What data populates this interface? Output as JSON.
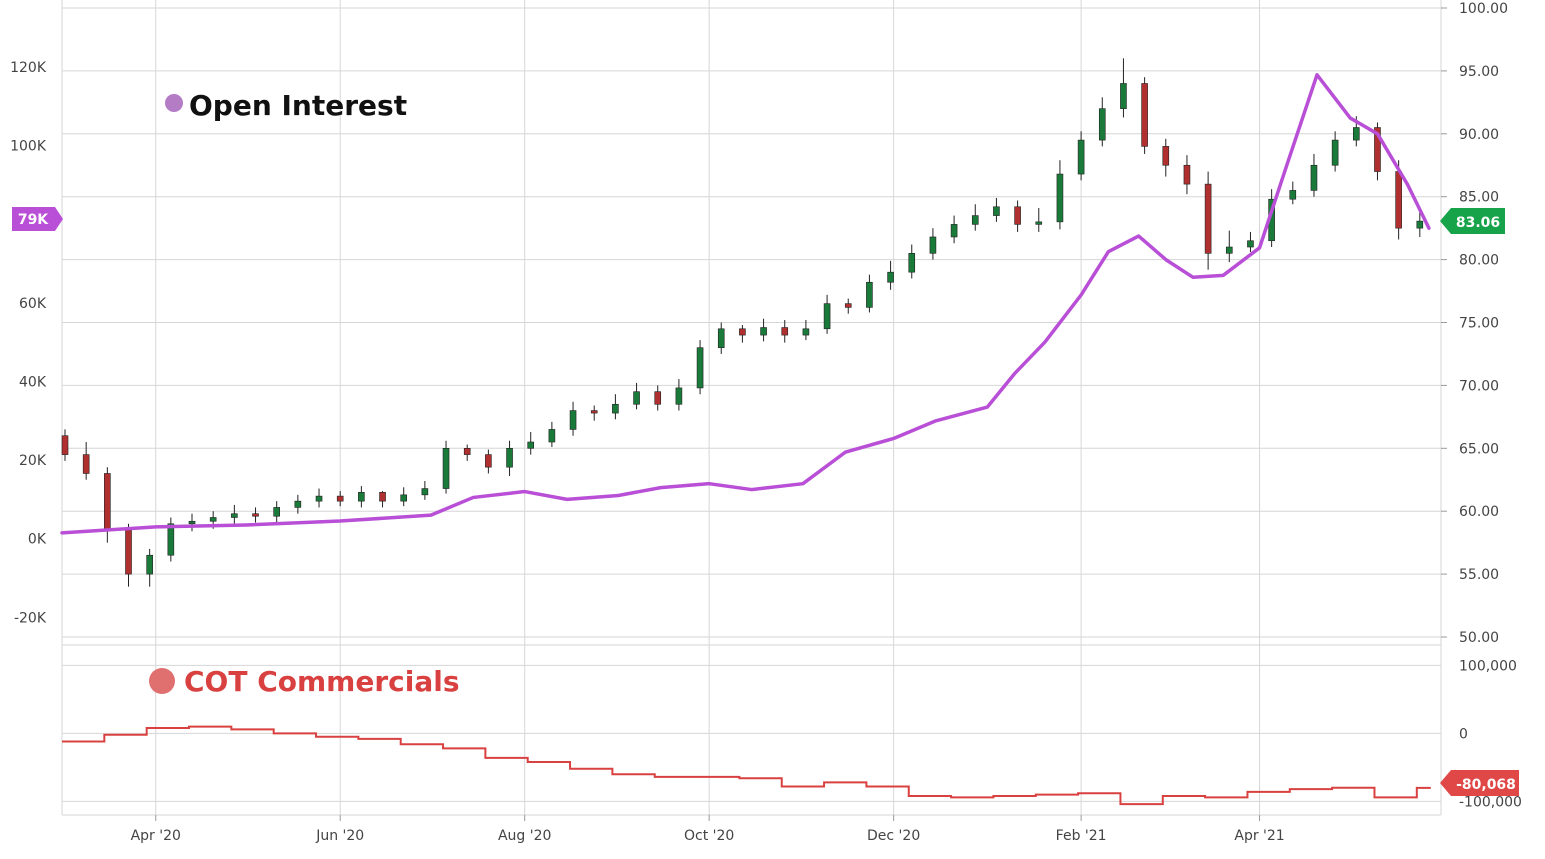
{
  "colors": {
    "background": "#ffffff",
    "grid": "#d6d6d6",
    "axis_text": "#444444",
    "open_interest_line": "#b84fd6",
    "open_interest_legend_dot": "#b57cc6",
    "cot_line": "#d94040",
    "cot_legend_dot": "#e07070",
    "candle_up": "#1a7a3a",
    "candle_down": "#b03030",
    "wick": "#222222",
    "price_badge": "#16a34a",
    "oi_badge": "#b84fd6",
    "cot_badge": "#e04848"
  },
  "chart_data": [
    {
      "type": "candlestick",
      "panel": "main",
      "legend": [
        "Open Interest"
      ],
      "x_tick_labels": [
        "Apr '20",
        "Jun '20",
        "Aug '20",
        "Oct '20",
        "Dec '20",
        "Feb '21",
        "Apr '21"
      ],
      "x_ticks": [
        "2020-04-01",
        "2020-06-01",
        "2020-08-01",
        "2020-10-01",
        "2020-12-01",
        "2021-02-01",
        "2021-04-01"
      ],
      "xlim": [
        "2020-03-01",
        "2021-05-31"
      ],
      "left_axis": {
        "tick_labels": [
          "120K",
          "100K",
          "60K",
          "40K",
          "20K",
          "0K",
          "-20K"
        ],
        "ticks": [
          120000,
          100000,
          60000,
          40000,
          20000,
          0,
          -20000
        ],
        "ylim": [
          -25000,
          135000
        ]
      },
      "right_axis": {
        "tick_labels": [
          "100.00",
          "95.00",
          "90.00",
          "85.00",
          "80.00",
          "75.00",
          "70.00",
          "65.00",
          "60.00",
          "55.00",
          "50.00"
        ],
        "ticks": [
          100,
          95,
          90,
          85,
          80,
          75,
          70,
          65,
          60,
          55,
          50
        ],
        "ylim": [
          50,
          100
        ]
      },
      "grid": true,
      "price_series": {
        "x": [
          "2020-03-01",
          "2020-03-08",
          "2020-03-15",
          "2020-03-22",
          "2020-03-29",
          "2020-04-05",
          "2020-04-12",
          "2020-04-19",
          "2020-04-26",
          "2020-05-03",
          "2020-05-10",
          "2020-05-17",
          "2020-05-24",
          "2020-05-31",
          "2020-06-07",
          "2020-06-14",
          "2020-06-21",
          "2020-06-28",
          "2020-07-05",
          "2020-07-12",
          "2020-07-19",
          "2020-07-26",
          "2020-08-02",
          "2020-08-09",
          "2020-08-16",
          "2020-08-23",
          "2020-08-30",
          "2020-09-06",
          "2020-09-13",
          "2020-09-20",
          "2020-09-27",
          "2020-10-04",
          "2020-10-11",
          "2020-10-18",
          "2020-10-25",
          "2020-11-01",
          "2020-11-08",
          "2020-11-15",
          "2020-11-22",
          "2020-11-29",
          "2020-12-06",
          "2020-12-13",
          "2020-12-20",
          "2020-12-27",
          "2021-01-03",
          "2021-01-10",
          "2021-01-17",
          "2021-01-24",
          "2021-01-31",
          "2021-02-07",
          "2021-02-14",
          "2021-02-21",
          "2021-02-28",
          "2021-03-07",
          "2021-03-14",
          "2021-03-21",
          "2021-03-28",
          "2021-04-04",
          "2021-04-11",
          "2021-04-18",
          "2021-04-25",
          "2021-05-02",
          "2021-05-09",
          "2021-05-16",
          "2021-05-23"
        ],
        "open": [
          66.0,
          64.5,
          63.0,
          58.5,
          55.0,
          56.5,
          59.0,
          59.2,
          59.5,
          59.8,
          59.6,
          60.3,
          60.8,
          61.2,
          60.8,
          61.5,
          60.8,
          61.3,
          61.8,
          65.0,
          64.5,
          63.5,
          65.0,
          65.5,
          66.5,
          68.0,
          67.8,
          68.5,
          69.5,
          68.5,
          69.8,
          73.0,
          74.5,
          74.0,
          74.6,
          74.0,
          74.5,
          76.5,
          76.2,
          78.2,
          79.0,
          80.5,
          81.8,
          82.8,
          83.5,
          84.2,
          82.8,
          83.0,
          86.8,
          89.5,
          92.0,
          94.0,
          89.0,
          87.5,
          86.0,
          80.5,
          81.0,
          81.5,
          84.8,
          85.5,
          87.5,
          89.5,
          90.5,
          87.0,
          82.5
        ],
        "close": [
          64.5,
          63.0,
          58.5,
          55.0,
          56.5,
          59.0,
          59.2,
          59.5,
          59.8,
          59.6,
          60.3,
          60.8,
          61.2,
          60.8,
          61.5,
          60.8,
          61.3,
          61.8,
          65.0,
          64.5,
          63.5,
          65.0,
          65.5,
          66.5,
          68.0,
          67.8,
          68.5,
          69.5,
          68.5,
          69.8,
          73.0,
          74.5,
          74.0,
          74.6,
          74.0,
          74.5,
          76.5,
          76.2,
          78.2,
          79.0,
          80.5,
          81.8,
          82.8,
          83.5,
          84.2,
          82.8,
          83.0,
          86.8,
          89.5,
          92.0,
          94.0,
          89.0,
          87.5,
          86.0,
          80.5,
          81.0,
          81.5,
          84.8,
          85.5,
          87.5,
          89.5,
          90.5,
          87.0,
          82.5,
          83.06
        ],
        "high": [
          66.5,
          65.5,
          63.5,
          59.0,
          57.0,
          59.5,
          59.8,
          60.0,
          60.5,
          60.3,
          60.8,
          61.3,
          61.8,
          61.6,
          62.0,
          61.6,
          61.9,
          62.4,
          65.6,
          65.3,
          64.9,
          65.6,
          66.3,
          67.1,
          68.7,
          68.4,
          69.3,
          70.2,
          70.0,
          70.5,
          73.6,
          75.0,
          74.8,
          75.3,
          75.2,
          75.2,
          77.2,
          76.9,
          78.8,
          79.9,
          81.2,
          82.5,
          83.5,
          84.4,
          84.9,
          84.7,
          84.1,
          87.9,
          90.2,
          92.9,
          96.0,
          94.5,
          89.6,
          88.3,
          87.0,
          82.3,
          82.2,
          85.6,
          86.2,
          88.4,
          90.2,
          91.4,
          90.9,
          87.9,
          83.8
        ],
        "low": [
          64.0,
          62.5,
          57.5,
          54.0,
          54.0,
          56.0,
          58.4,
          58.6,
          59.0,
          59.1,
          59.1,
          59.8,
          60.3,
          60.4,
          60.3,
          60.3,
          60.4,
          60.9,
          61.4,
          64.0,
          63.0,
          62.8,
          64.5,
          65.1,
          66.0,
          67.2,
          67.3,
          68.1,
          68.0,
          68.0,
          69.3,
          72.5,
          73.4,
          73.5,
          73.4,
          73.6,
          74.1,
          75.7,
          75.8,
          77.6,
          78.5,
          80.0,
          81.3,
          82.3,
          83.0,
          82.2,
          82.2,
          82.4,
          86.3,
          89.0,
          91.3,
          88.4,
          86.6,
          85.2,
          79.2,
          79.8,
          80.6,
          81.0,
          84.4,
          85.0,
          87.0,
          89.0,
          86.3,
          81.6,
          81.8
        ]
      },
      "open_interest": {
        "name": "Open Interest",
        "axis": "left",
        "x": [
          "2020-03-01",
          "2020-04-01",
          "2020-05-01",
          "2020-06-01",
          "2020-07-01",
          "2020-07-15",
          "2020-08-01",
          "2020-08-15",
          "2020-09-01",
          "2020-09-15",
          "2020-10-01",
          "2020-10-15",
          "2020-11-01",
          "2020-11-15",
          "2020-12-01",
          "2020-12-15",
          "2021-01-01",
          "2021-01-10",
          "2021-01-20",
          "2021-02-01",
          "2021-02-10",
          "2021-02-20",
          "2021-03-01",
          "2021-03-10",
          "2021-03-20",
          "2021-04-01",
          "2021-04-10",
          "2021-04-20",
          "2021-05-01",
          "2021-05-10",
          "2021-05-20",
          "2021-05-27"
        ],
        "values": [
          1500,
          3000,
          3500,
          4500,
          6000,
          10500,
          12000,
          10000,
          11000,
          13000,
          14000,
          12500,
          14000,
          22000,
          25500,
          30000,
          33500,
          42000,
          50000,
          62000,
          73000,
          77000,
          71000,
          66500,
          67000,
          74000,
          95000,
          118000,
          107000,
          103000,
          90000,
          79000
        ]
      },
      "badges": {
        "open_interest_last": "79K",
        "price_last": "83.06"
      }
    },
    {
      "type": "line",
      "panel": "lower",
      "legend": [
        "COT Commercials"
      ],
      "right_axis": {
        "tick_labels": [
          "100,000",
          "0",
          "-100,000"
        ],
        "ticks": [
          100000,
          0,
          -100000
        ],
        "ylim": [
          -120000,
          130000
        ]
      },
      "series": [
        {
          "name": "COT Commercials",
          "x": [
            "2020-03-01",
            "2020-03-15",
            "2020-03-29",
            "2020-04-12",
            "2020-04-26",
            "2020-05-10",
            "2020-05-24",
            "2020-06-07",
            "2020-06-21",
            "2020-07-05",
            "2020-07-19",
            "2020-08-02",
            "2020-08-16",
            "2020-08-30",
            "2020-09-13",
            "2020-09-27",
            "2020-10-11",
            "2020-10-25",
            "2020-11-08",
            "2020-11-22",
            "2020-12-06",
            "2020-12-20",
            "2021-01-03",
            "2021-01-17",
            "2021-01-31",
            "2021-02-14",
            "2021-02-28",
            "2021-03-14",
            "2021-03-28",
            "2021-04-11",
            "2021-04-25",
            "2021-05-09",
            "2021-05-23"
          ],
          "values": [
            -12000,
            -2000,
            8000,
            10000,
            6000,
            0,
            -5000,
            -8000,
            -16000,
            -22000,
            -36000,
            -42000,
            -52000,
            -60000,
            -64000,
            -64000,
            -66000,
            -78000,
            -72000,
            -78000,
            -92000,
            -94000,
            -92000,
            -90000,
            -88000,
            -104000,
            -92000,
            -94000,
            -86000,
            -82000,
            -80000,
            -94000,
            -80068
          ]
        }
      ],
      "badges": {
        "cot_last": "-80,068"
      }
    }
  ]
}
